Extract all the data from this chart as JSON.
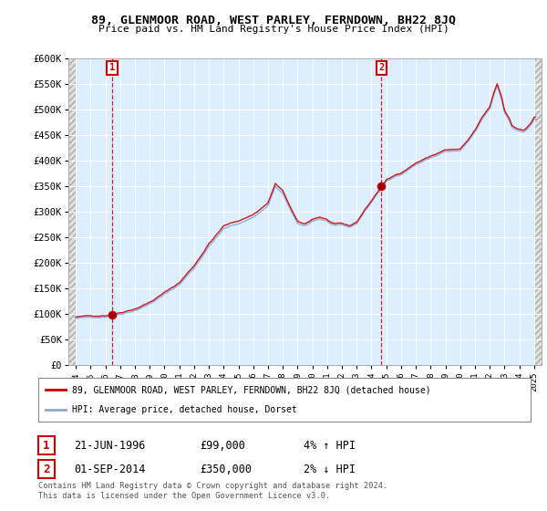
{
  "title": "89, GLENMOOR ROAD, WEST PARLEY, FERNDOWN, BH22 8JQ",
  "subtitle": "Price paid vs. HM Land Registry's House Price Index (HPI)",
  "ylim": [
    0,
    600000
  ],
  "sale1_date": "21-JUN-1996",
  "sale1_price": 99000,
  "sale1_year": 1996.46,
  "sale1_hpi": "4% ↑ HPI",
  "sale2_date": "01-SEP-2014",
  "sale2_price": 350000,
  "sale2_year": 2014.67,
  "sale2_hpi": "2% ↓ HPI",
  "legend_line1": "89, GLENMOOR ROAD, WEST PARLEY, FERNDOWN, BH22 8JQ (detached house)",
  "legend_line2": "HPI: Average price, detached house, Dorset",
  "footer": "Contains HM Land Registry data © Crown copyright and database right 2024.\nThis data is licensed under the Open Government Licence v3.0.",
  "price_line_color": "#cc0000",
  "hpi_line_color": "#88aadd",
  "plot_bg_color": "#ddeeff",
  "hatch_bg_color": "#cccccc",
  "grid_color": "#ffffff",
  "box_color": "#cc0000"
}
